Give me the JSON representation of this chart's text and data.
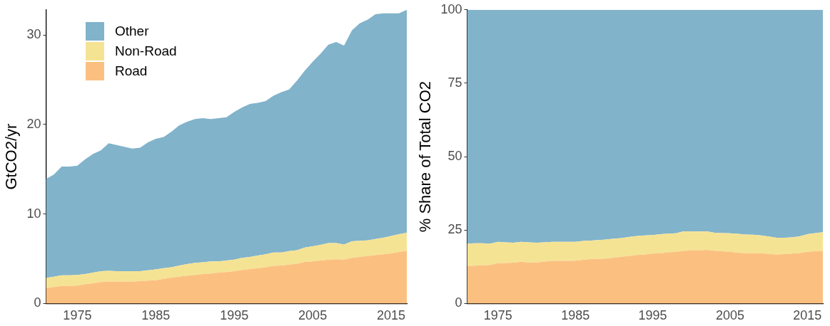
{
  "chart_data": [
    {
      "type": "area",
      "ylabel": "GtCO2/yr",
      "stacked": true,
      "legend": "top left",
      "x": [
        1971,
        1972,
        1973,
        1974,
        1975,
        1976,
        1977,
        1978,
        1979,
        1980,
        1981,
        1982,
        1983,
        1984,
        1985,
        1986,
        1987,
        1988,
        1989,
        1990,
        1991,
        1992,
        1993,
        1994,
        1995,
        1996,
        1997,
        1998,
        1999,
        2000,
        2001,
        2002,
        2003,
        2004,
        2005,
        2006,
        2007,
        2008,
        2009,
        2010,
        2011,
        2012,
        2013,
        2014,
        2015,
        2016,
        2017
      ],
      "xlim": [
        1971,
        2017
      ],
      "xticks": [
        1975,
        1985,
        1995,
        2005,
        2015
      ],
      "ylim": [
        0,
        32.8
      ],
      "yticks": [
        0,
        10,
        20,
        30
      ],
      "series": [
        {
          "name": "Road",
          "color": "#fbc080",
          "values": [
            1.7,
            1.85,
            1.95,
            1.95,
            2.0,
            2.15,
            2.25,
            2.4,
            2.45,
            2.45,
            2.45,
            2.45,
            2.5,
            2.55,
            2.6,
            2.75,
            2.9,
            3.0,
            3.1,
            3.2,
            3.3,
            3.35,
            3.45,
            3.5,
            3.6,
            3.75,
            3.85,
            3.95,
            4.05,
            4.2,
            4.25,
            4.35,
            4.45,
            4.65,
            4.7,
            4.8,
            4.9,
            4.95,
            4.9,
            5.1,
            5.2,
            5.3,
            5.4,
            5.5,
            5.6,
            5.75,
            5.9
          ]
        },
        {
          "name": "Non-Road",
          "color": "#f5e394",
          "values": [
            1.15,
            1.15,
            1.2,
            1.2,
            1.2,
            1.15,
            1.2,
            1.2,
            1.2,
            1.15,
            1.15,
            1.15,
            1.1,
            1.15,
            1.2,
            1.2,
            1.15,
            1.25,
            1.3,
            1.35,
            1.3,
            1.35,
            1.25,
            1.3,
            1.3,
            1.35,
            1.35,
            1.4,
            1.45,
            1.5,
            1.45,
            1.5,
            1.5,
            1.6,
            1.7,
            1.75,
            1.85,
            1.8,
            1.7,
            1.85,
            1.8,
            1.75,
            1.8,
            1.85,
            1.95,
            2.0,
            2.0
          ]
        },
        {
          "name": "Other",
          "color": "#81b3cb",
          "values": [
            11.05,
            11.4,
            12.15,
            12.15,
            12.2,
            12.8,
            13.25,
            13.5,
            14.25,
            14.1,
            13.9,
            13.7,
            13.8,
            14.3,
            14.6,
            14.65,
            15.15,
            15.65,
            15.9,
            16.05,
            16.1,
            15.9,
            16.0,
            16.0,
            16.5,
            16.8,
            17.1,
            17.05,
            17.1,
            17.5,
            17.9,
            18.05,
            18.95,
            19.75,
            20.6,
            21.35,
            22.15,
            22.45,
            22.2,
            23.55,
            24.3,
            24.65,
            25.1,
            25.05,
            24.85,
            24.65,
            24.9
          ]
        }
      ]
    },
    {
      "type": "area",
      "ylabel": "% Share of Total CO2",
      "stacked": true,
      "x": [
        1971,
        1972,
        1973,
        1974,
        1975,
        1976,
        1977,
        1978,
        1979,
        1980,
        1981,
        1982,
        1983,
        1984,
        1985,
        1986,
        1987,
        1988,
        1989,
        1990,
        1991,
        1992,
        1993,
        1994,
        1995,
        1996,
        1997,
        1998,
        1999,
        2000,
        2001,
        2002,
        2003,
        2004,
        2005,
        2006,
        2007,
        2008,
        2009,
        2010,
        2011,
        2012,
        2013,
        2014,
        2015,
        2016,
        2017
      ],
      "xlim": [
        1971,
        2017
      ],
      "xticks": [
        1975,
        1985,
        1995,
        2005,
        2015
      ],
      "ylim": [
        0,
        100
      ],
      "yticks": [
        0,
        25,
        50,
        75,
        100
      ],
      "series": [
        {
          "color": "#fbc080",
          "values": [
            12.7,
            12.9,
            13.0,
            13.1,
            13.7,
            13.8,
            13.9,
            14.2,
            14.0,
            14.0,
            14.3,
            14.5,
            14.6,
            14.5,
            14.6,
            14.9,
            15.1,
            15.2,
            15.3,
            15.6,
            15.9,
            16.2,
            16.5,
            16.7,
            17.0,
            17.1,
            17.4,
            17.6,
            17.9,
            18.1,
            18.1,
            18.3,
            18.0,
            17.8,
            17.6,
            17.3,
            17.1,
            17.1,
            17.1,
            16.9,
            16.7,
            16.8,
            17.0,
            17.2,
            17.6,
            17.8,
            17.9
          ]
        },
        {
          "color": "#f5e394",
          "values": [
            7.7,
            7.6,
            7.5,
            7.3,
            7.3,
            7.0,
            6.8,
            6.8,
            6.8,
            6.7,
            6.5,
            6.5,
            6.4,
            6.5,
            6.4,
            6.4,
            6.3,
            6.4,
            6.5,
            6.5,
            6.4,
            6.5,
            6.5,
            6.5,
            6.3,
            6.5,
            6.4,
            6.3,
            6.7,
            6.5,
            6.4,
            6.3,
            6.1,
            6.2,
            6.3,
            6.4,
            6.4,
            6.3,
            6.1,
            5.9,
            5.7,
            5.6,
            5.5,
            5.7,
            6.0,
            6.2,
            6.4
          ]
        },
        {
          "color": "#81b3cb",
          "values": [
            79.6,
            79.5,
            79.5,
            79.6,
            79.0,
            79.2,
            79.3,
            79.0,
            79.2,
            79.3,
            79.2,
            79.0,
            79.0,
            79.0,
            79.0,
            78.7,
            78.6,
            78.4,
            78.2,
            77.9,
            77.7,
            77.3,
            77.0,
            76.8,
            76.7,
            76.4,
            76.2,
            76.1,
            75.4,
            75.4,
            75.5,
            75.4,
            75.9,
            76.0,
            76.1,
            76.3,
            76.5,
            76.6,
            76.8,
            77.2,
            77.6,
            77.6,
            77.5,
            77.1,
            76.4,
            76.0,
            75.7
          ]
        }
      ]
    }
  ]
}
